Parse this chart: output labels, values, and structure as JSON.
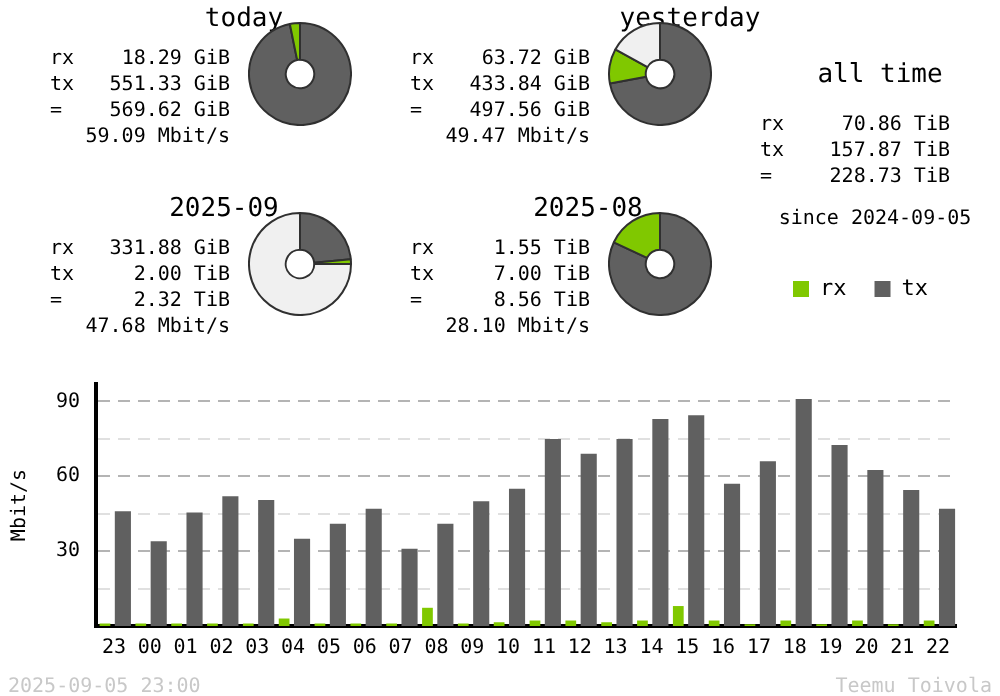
{
  "chart_data": [
    {
      "type": "donut",
      "title": "today",
      "categories": [
        null,
        null,
        null
      ],
      "values": [
        96.8,
        3.2,
        0
      ],
      "colors": [
        "#606060",
        "#80c800",
        "#f0f0f0"
      ],
      "annotations": [
        "rx 18.29 GiB",
        "tx 551.33 GiB",
        "= 569.62 GiB",
        "59.09 Mbit/s"
      ]
    },
    {
      "type": "donut",
      "title": "yesterday",
      "categories": [
        null,
        null,
        null
      ],
      "values": [
        72,
        11,
        17
      ],
      "colors": [
        "#606060",
        "#80c800",
        "#f0f0f0"
      ],
      "annotations": [
        "rx 63.72 GiB",
        "tx 433.84 GiB",
        "= 497.56 GiB",
        "49.47 Mbit/s"
      ]
    },
    {
      "type": "other",
      "title": "all time",
      "annotations": [
        "rx 70.86 TiB",
        "tx 157.87 TiB",
        "= 228.73 TiB",
        "since 2024-09-05"
      ]
    },
    {
      "type": "donut",
      "title": "2025-09",
      "categories": [
        null,
        null,
        null
      ],
      "values": [
        23.5,
        1.5,
        75
      ],
      "colors": [
        "#606060",
        "#80c800",
        "#f0f0f0"
      ],
      "annotations": [
        "rx 331.88 GiB",
        "tx 2.00 TiB",
        "= 2.32 TiB",
        "47.68 Mbit/s"
      ]
    },
    {
      "type": "donut",
      "title": "2025-08",
      "categories": [
        null,
        null,
        null
      ],
      "values": [
        82,
        18,
        0
      ],
      "colors": [
        "#606060",
        "#80c800",
        "#f0f0f0"
      ],
      "annotations": [
        "rx 1.55 TiB",
        "tx 7.00 TiB",
        "= 8.56 TiB",
        "28.10 Mbit/s"
      ]
    },
    {
      "type": "bar",
      "categories": [
        "23",
        "00",
        "01",
        "02",
        "03",
        "04",
        "05",
        "06",
        "07",
        "08",
        "09",
        "10",
        "11",
        "12",
        "13",
        "14",
        "15",
        "16",
        "17",
        "18",
        "19",
        "20",
        "21",
        "22"
      ],
      "series": [
        {
          "name": "rx",
          "color": "#80c800",
          "values": [
            1,
            1,
            1,
            1,
            1,
            3,
            1,
            1,
            1,
            7.3,
            1,
            1.5,
            2.2,
            2.2,
            1.5,
            2.2,
            8,
            2.2,
            0.7,
            2.2,
            0.7,
            2.2,
            0.7,
            2.2
          ]
        },
        {
          "name": "tx",
          "color": "#606060",
          "values": [
            46,
            34,
            45.5,
            52,
            50.5,
            35,
            41,
            47,
            31,
            41,
            50,
            55,
            75,
            69,
            75,
            83,
            84.5,
            57,
            66,
            91,
            72.5,
            62.5,
            54.5,
            47
          ]
        }
      ],
      "ylabel": "Mbit/s",
      "ylim": [
        0,
        97
      ],
      "yticks": [
        {
          "value": 15,
          "label": null
        },
        30,
        {
          "value": 45,
          "label": null
        },
        60,
        {
          "value": 75,
          "label": null
        },
        90
      ],
      "grid": "y",
      "legend": "top right",
      "annotations": [
        "2025-09-05 23:00",
        "Teemu Toivola"
      ]
    }
  ]
}
